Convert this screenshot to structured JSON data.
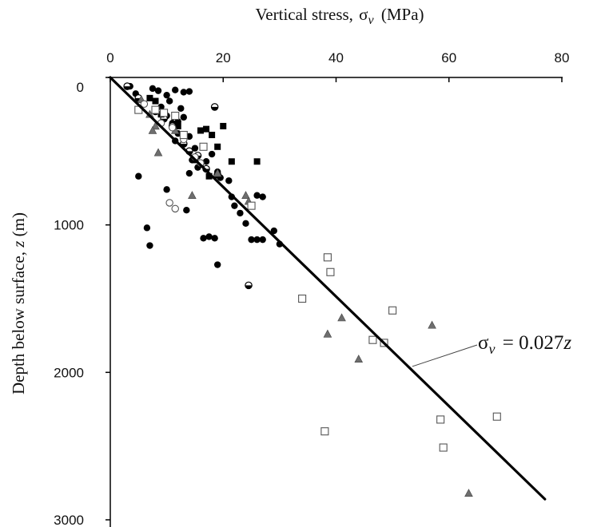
{
  "chart_data": {
    "type": "scatter",
    "title": "",
    "xlabel": "Vertical stress, σv (MPa)",
    "xlabel_parts": {
      "text": "Vertical stress, ",
      "sym": "σ",
      "sub": "v",
      "unit": " (MPa)"
    },
    "ylabel": "Depth below surface, z (m)",
    "ylabel_parts": {
      "text": "Depth below surface, ",
      "sym": "z",
      "unit": " (m)"
    },
    "x_axis_position": "top",
    "y_inverted": true,
    "xlim": [
      0,
      80
    ],
    "ylim": [
      0,
      3000
    ],
    "x_ticks": [
      0,
      20,
      40,
      60,
      80
    ],
    "y_ticks": [
      0,
      1000,
      2000,
      3000
    ],
    "grid": false,
    "colors": {
      "filled": "#000000",
      "grey": "#6e6e6e",
      "open_stroke": "#555555",
      "line": "#000000"
    },
    "trend_line": {
      "label": "σv = 0.027z",
      "label_parts": {
        "sym": "σ",
        "sub": "v",
        "rest": " = 0.027",
        "var": "z"
      },
      "slope_mpa_per_m": 0.027,
      "from": [
        0,
        0
      ],
      "to": [
        77,
        2860
      ],
      "leader_point": [
        53.5,
        1960
      ]
    },
    "series": [
      {
        "marker": "filled-circle",
        "points": [
          [
            3.5,
            60
          ],
          [
            4.5,
            110
          ],
          [
            7.5,
            75
          ],
          [
            8.5,
            90
          ],
          [
            10,
            120
          ],
          [
            10.5,
            160
          ],
          [
            11.5,
            85
          ],
          [
            13,
            100
          ],
          [
            14,
            95
          ],
          [
            9,
            200
          ],
          [
            10,
            260
          ],
          [
            12,
            300
          ],
          [
            12.5,
            210
          ],
          [
            11,
            310
          ],
          [
            12,
            380
          ],
          [
            11.5,
            430
          ],
          [
            13,
            270
          ],
          [
            14,
            400
          ],
          [
            15,
            480
          ],
          [
            14.5,
            560
          ],
          [
            15.5,
            610
          ],
          [
            14,
            650
          ],
          [
            16,
            590
          ],
          [
            17,
            570
          ],
          [
            18,
            520
          ],
          [
            19,
            640
          ],
          [
            19.5,
            680
          ],
          [
            21,
            700
          ],
          [
            21.5,
            810
          ],
          [
            22,
            870
          ],
          [
            23,
            920
          ],
          [
            24,
            990
          ],
          [
            25,
            1100
          ],
          [
            26,
            1100
          ],
          [
            27,
            1100
          ],
          [
            26,
            800
          ],
          [
            27,
            810
          ],
          [
            29,
            1040
          ],
          [
            30,
            1130
          ],
          [
            13.5,
            900
          ],
          [
            16.5,
            1090
          ],
          [
            17.5,
            1080
          ],
          [
            18.5,
            1090
          ],
          [
            19,
            1270
          ],
          [
            6.5,
            1020
          ],
          [
            7,
            1140
          ],
          [
            5,
            670
          ],
          [
            10,
            760
          ]
        ]
      },
      {
        "marker": "half-filled-circle",
        "points": [
          [
            3,
            60
          ],
          [
            5,
            140
          ],
          [
            8,
            230
          ],
          [
            9.5,
            280
          ],
          [
            11,
            330
          ],
          [
            13,
            450
          ],
          [
            14,
            500
          ],
          [
            15.5,
            530
          ],
          [
            17,
            620
          ],
          [
            19,
            660
          ],
          [
            18.5,
            200
          ],
          [
            24.5,
            1410
          ]
        ]
      },
      {
        "marker": "filled-square",
        "points": [
          [
            7,
            140
          ],
          [
            8,
            160
          ],
          [
            9,
            250
          ],
          [
            12,
            330
          ],
          [
            16,
            360
          ],
          [
            17,
            350
          ],
          [
            18,
            390
          ],
          [
            20,
            330
          ],
          [
            19,
            470
          ],
          [
            15,
            560
          ],
          [
            17.5,
            670
          ],
          [
            21.5,
            570
          ],
          [
            26,
            570
          ]
        ]
      },
      {
        "marker": "grey-triangle",
        "points": [
          [
            5.5,
            150
          ],
          [
            7,
            250
          ],
          [
            8,
            330
          ],
          [
            7.5,
            360
          ],
          [
            8.5,
            510
          ],
          [
            11.5,
            360
          ],
          [
            14.5,
            800
          ],
          [
            19,
            650
          ],
          [
            24,
            800
          ],
          [
            24.5,
            840
          ],
          [
            38.5,
            1740
          ],
          [
            41,
            1630
          ],
          [
            44,
            1910
          ],
          [
            57,
            1680
          ],
          [
            63.5,
            2820
          ]
        ]
      },
      {
        "marker": "open-circle",
        "points": [
          [
            6,
            180
          ],
          [
            9,
            310
          ],
          [
            11,
            340
          ],
          [
            13,
            420
          ],
          [
            15,
            540
          ],
          [
            16,
            580
          ],
          [
            10.5,
            850
          ],
          [
            11.5,
            890
          ]
        ]
      },
      {
        "marker": "open-square",
        "points": [
          [
            5,
            220
          ],
          [
            8,
            220
          ],
          [
            9.5,
            240
          ],
          [
            11.5,
            260
          ],
          [
            13,
            390
          ],
          [
            16.5,
            470
          ],
          [
            25,
            870
          ],
          [
            38.5,
            1220
          ],
          [
            39,
            1320
          ],
          [
            34,
            1500
          ],
          [
            50,
            1580
          ],
          [
            46.5,
            1780
          ],
          [
            48.5,
            1800
          ],
          [
            58.5,
            2320
          ],
          [
            59,
            2510
          ],
          [
            68.5,
            2300
          ],
          [
            38,
            2400
          ]
        ]
      }
    ]
  }
}
